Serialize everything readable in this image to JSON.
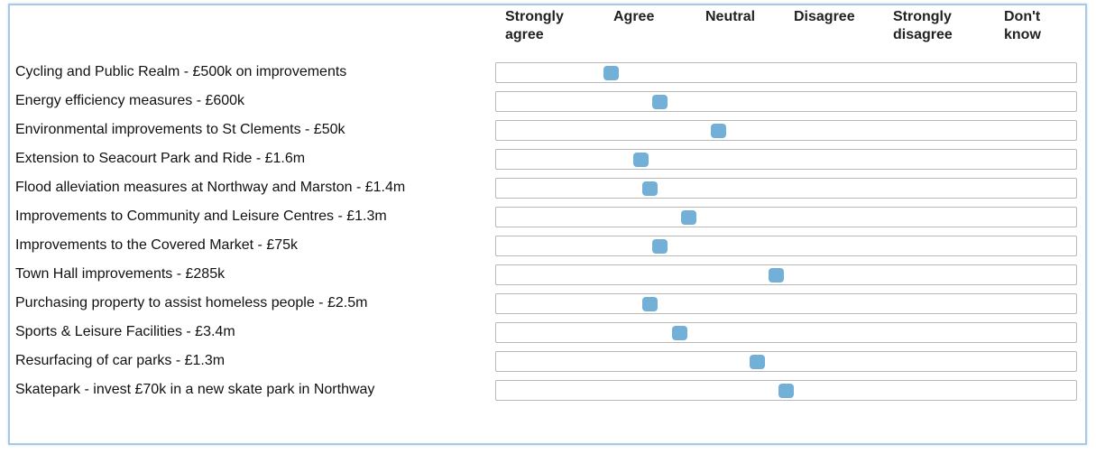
{
  "columns": [
    "Strongly agree",
    "Agree",
    "Neutral",
    "Disagree",
    "Strongly disagree",
    "Don't know"
  ],
  "rows": [
    {
      "label": "Cycling and Public Realm - £500k on improvements",
      "value": 1.7
    },
    {
      "label": "Energy efficiency measures - £600k",
      "value": 2.2
    },
    {
      "label": "Environmental improvements to St Clements - £50k",
      "value": 2.8
    },
    {
      "label": "Extension to Seacourt Park and Ride - £1.6m",
      "value": 2.0
    },
    {
      "label": "Flood alleviation measures at Northway and Marston - £1.4m",
      "value": 2.1
    },
    {
      "label": "Improvements to Community and Leisure Centres - £1.3m",
      "value": 2.5
    },
    {
      "label": "Improvements to the Covered Market - £75k",
      "value": 2.2
    },
    {
      "label": "Town Hall improvements - £285k",
      "value": 3.4
    },
    {
      "label": "Purchasing property to assist homeless people - £2.5m",
      "value": 2.1
    },
    {
      "label": "Sports & Leisure Facilities - £3.4m",
      "value": 2.4
    },
    {
      "label": "Resurfacing of car parks - £1.3m",
      "value": 3.2
    },
    {
      "label": "Skatepark - invest £70k in a new skate park in Northway",
      "value": 3.5
    }
  ]
}
